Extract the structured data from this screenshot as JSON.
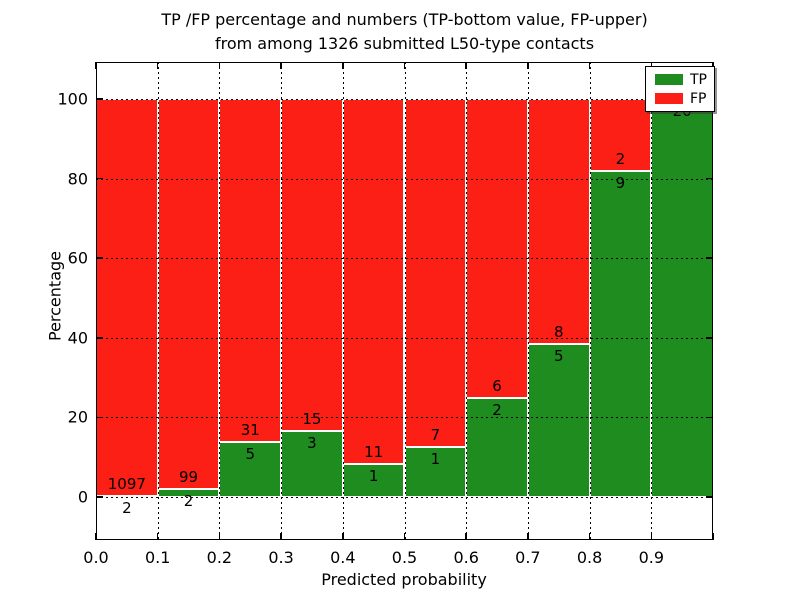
{
  "title": {
    "line1": "TP /FP percentage and numbers (TP-bottom value, FP-upper)",
    "line2": "from among 1326 submitted L50-type contacts"
  },
  "axes": {
    "ylabel": "Percentage",
    "xlabel": "Predicted probability",
    "ytick_labels": [
      "0",
      "20",
      "40",
      "60",
      "80",
      "100"
    ],
    "xtick_labels": [
      "0.0",
      "0.1",
      "0.2",
      "0.3",
      "0.4",
      "0.5",
      "0.6",
      "0.7",
      "0.8",
      "0.9"
    ]
  },
  "legend": {
    "entries": [
      {
        "label": "TP",
        "color": "#1e8c1e"
      },
      {
        "label": "FP",
        "color": "#fb1f16"
      }
    ]
  },
  "colors": {
    "tp_green": "#1e8c1e",
    "fp_red": "#fb1f16",
    "background": "#ffffff",
    "grid": "#000000"
  },
  "chart_data": {
    "type": "bar",
    "stacked": true,
    "normalized_to_percent": true,
    "title": "TP /FP percentage and numbers (TP-bottom value, FP-upper) from among 1326 submitted L50-type contacts",
    "xlabel": "Predicted probability",
    "ylabel": "Percentage",
    "total_contacts": 1326,
    "bin_edges": [
      0.0,
      0.1,
      0.2,
      0.3,
      0.4,
      0.5,
      0.6,
      0.7,
      0.8,
      0.9,
      1.0
    ],
    "categories": [
      "0.0-0.1",
      "0.1-0.2",
      "0.2-0.3",
      "0.3-0.4",
      "0.4-0.5",
      "0.5-0.6",
      "0.6-0.7",
      "0.7-0.8",
      "0.8-0.9",
      "0.9-1.0"
    ],
    "series": [
      {
        "name": "TP",
        "color": "#1e8c1e",
        "counts": [
          2,
          2,
          5,
          3,
          1,
          1,
          2,
          5,
          9,
          20
        ],
        "percent": [
          0.18,
          1.98,
          13.89,
          16.67,
          8.33,
          12.5,
          25.0,
          38.46,
          81.82,
          100.0
        ]
      },
      {
        "name": "FP",
        "color": "#fb1f16",
        "counts": [
          1097,
          99,
          31,
          15,
          11,
          7,
          6,
          8,
          2,
          0
        ],
        "percent": [
          99.82,
          98.02,
          86.11,
          83.33,
          91.67,
          87.5,
          75.0,
          61.54,
          18.18,
          0.0
        ]
      }
    ],
    "bar_label_convention": "TP count below boundary, FP count above boundary",
    "ylim": [
      -11,
      110
    ],
    "yticks": [
      0,
      20,
      40,
      60,
      80,
      100
    ],
    "grid": "dotted",
    "legend_position": "upper right"
  }
}
